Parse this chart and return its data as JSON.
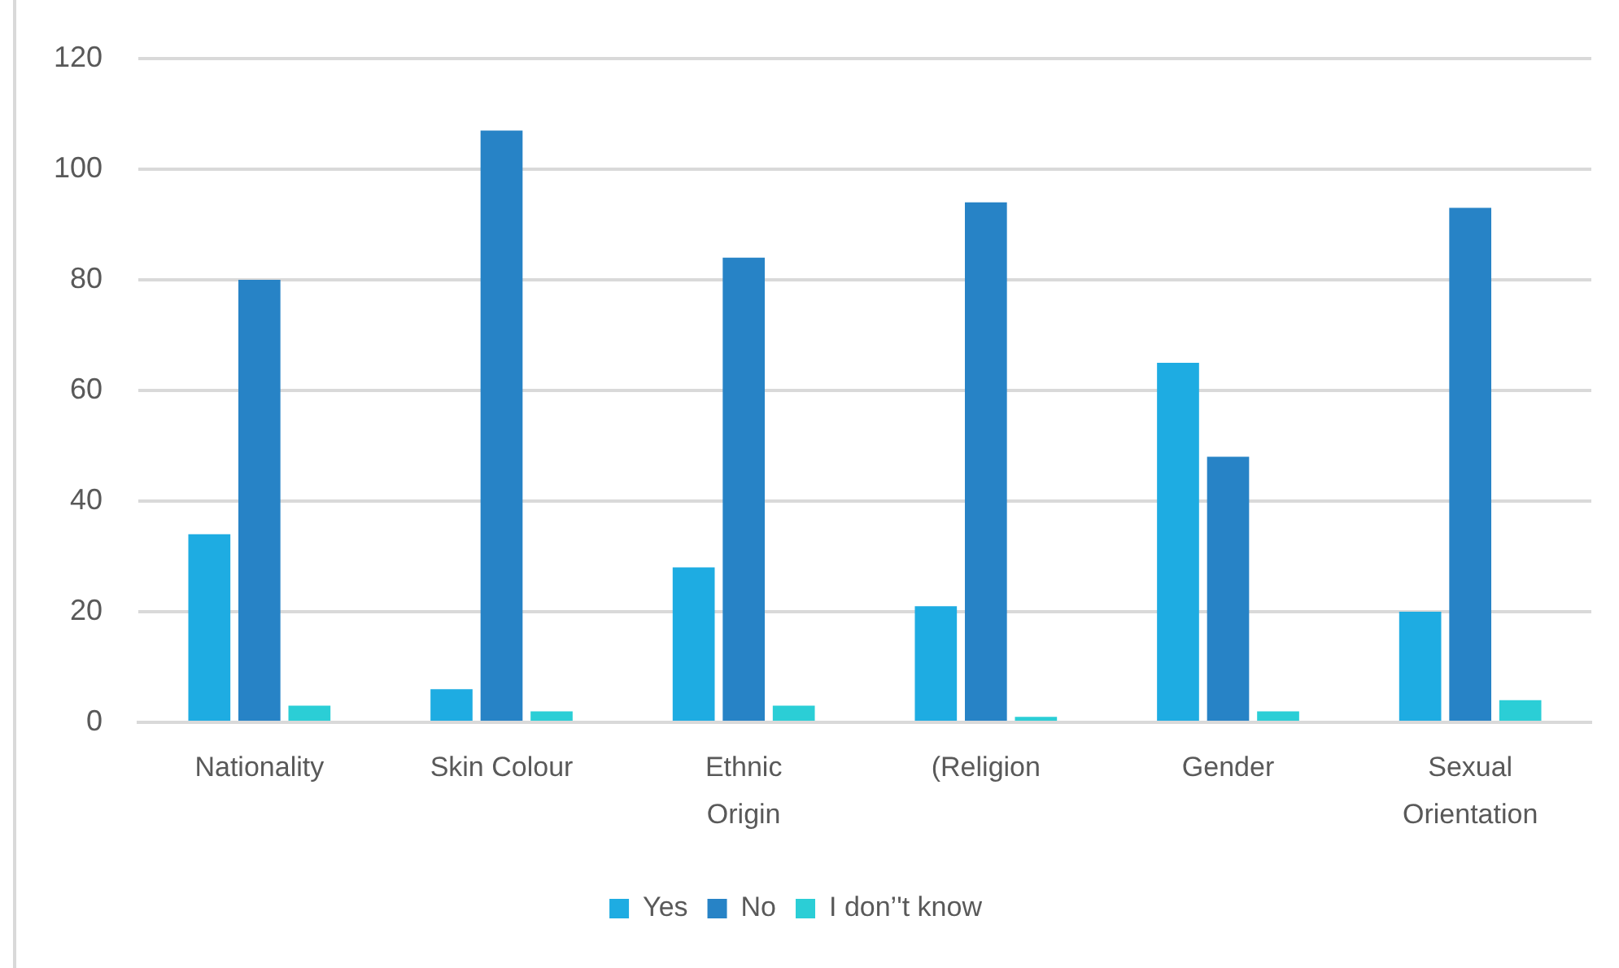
{
  "chart_data": {
    "type": "bar",
    "categories": [
      "Nationality",
      "Skin Colour",
      "Ethnic Origin",
      "(Religion",
      "Gender",
      "Sexual Orientation"
    ],
    "series": [
      {
        "name": "Yes",
        "color": "#1eace2",
        "values": [
          34,
          6,
          28,
          21,
          65,
          20
        ]
      },
      {
        "name": "No",
        "color": "#2783c6",
        "values": [
          80,
          107,
          84,
          94,
          48,
          93
        ]
      },
      {
        "name": "I don’'t know",
        "color": "#2bced6",
        "values": [
          3,
          2,
          3,
          1,
          2,
          4
        ]
      }
    ],
    "ylim": [
      0,
      120
    ],
    "yticks": [
      0,
      20,
      40,
      60,
      80,
      100,
      120
    ],
    "grid": "y",
    "legend": "bottom"
  }
}
